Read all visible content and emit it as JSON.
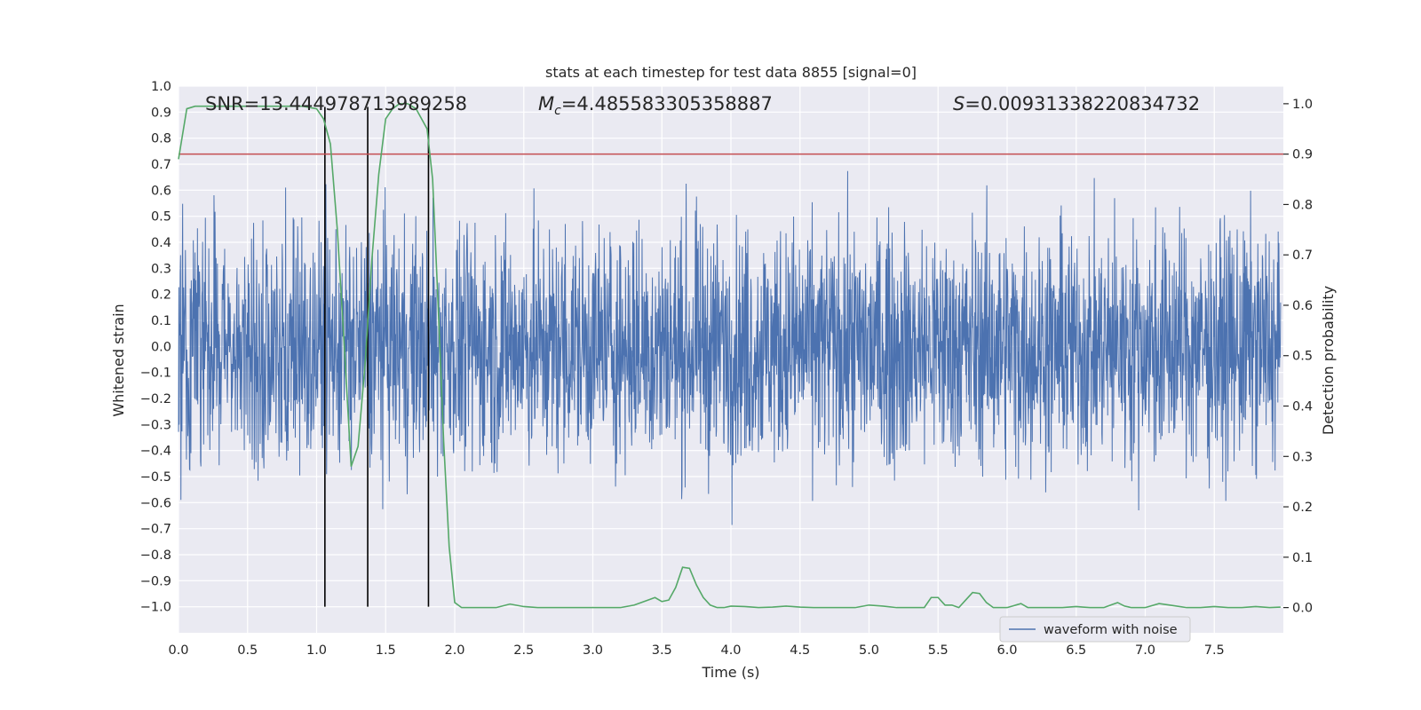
{
  "chart_data": {
    "type": "line",
    "title": "stats at each timestep for test data 8855 [signal=0]",
    "xlabel": "Time (s)",
    "ylabel": "Whitened strain",
    "ylabel_right": "Detection probability",
    "xlim": [
      0.0,
      8.0
    ],
    "ylim": [
      -1.1,
      1.0
    ],
    "ylim_right": [
      -0.05,
      1.035
    ],
    "xticks": [
      0.0,
      0.5,
      1.0,
      1.5,
      2.0,
      2.5,
      3.0,
      3.5,
      4.0,
      4.5,
      5.0,
      5.5,
      6.0,
      6.5,
      7.0,
      7.5
    ],
    "xtick_labels": [
      "0.0",
      "0.5",
      "1.0",
      "1.5",
      "2.0",
      "2.5",
      "3.0",
      "3.5",
      "4.0",
      "4.5",
      "5.0",
      "5.5",
      "6.0",
      "6.5",
      "7.0",
      "7.5"
    ],
    "yticks": [
      1.0,
      0.9,
      0.8,
      0.7,
      0.6,
      0.5,
      0.4,
      0.3,
      0.2,
      0.1,
      0.0,
      -0.1,
      -0.2,
      -0.3,
      -0.4,
      -0.5,
      -0.6,
      -0.7,
      -0.8,
      -0.9,
      -1.0
    ],
    "ytick_labels": [
      "1.0",
      "0.9",
      "0.8",
      "0.7",
      "0.6",
      "0.5",
      "0.4",
      "0.3",
      "0.2",
      "0.1",
      "0.0",
      "−0.1",
      "−0.2",
      "−0.3",
      "−0.4",
      "−0.5",
      "−0.6",
      "−0.7",
      "−0.8",
      "−0.9",
      "−1.0"
    ],
    "yticks_right": [
      1.0,
      0.9,
      0.8,
      0.7,
      0.6,
      0.5,
      0.4,
      0.3,
      0.2,
      0.1,
      0.0
    ],
    "ytick_labels_right": [
      "1.0",
      "0.9",
      "0.8",
      "0.7",
      "0.6",
      "0.5",
      "0.4",
      "0.3",
      "0.2",
      "0.1",
      "0.0"
    ],
    "annotations": {
      "snr": "SNR=13.444978713989258",
      "mc_symbol": "M",
      "mc_sub": "c",
      "mc_value": "=4.485583305358887",
      "s_symbol": "S",
      "s_value": "=0.00931338220834732"
    },
    "legend": {
      "label": "waveform with noise",
      "position": "lower-right"
    },
    "threshold": {
      "value": 0.9,
      "axis": "right",
      "color": "#c44e52"
    },
    "event_lines": {
      "x": [
        1.06,
        1.37,
        1.81
      ],
      "y_range": [
        -1.0,
        0.92
      ],
      "color": "#000000"
    },
    "waveform": {
      "name": "waveform with noise",
      "color": "#4c72b0",
      "typical_amplitude": 0.45,
      "x_range": [
        0.0,
        7.98
      ]
    },
    "detection_probability": {
      "name": "Detection probability",
      "color": "#55a868",
      "x": [
        0.0,
        0.06,
        0.12,
        0.2,
        0.3,
        0.5,
        0.7,
        0.9,
        1.0,
        1.05,
        1.1,
        1.15,
        1.2,
        1.25,
        1.3,
        1.35,
        1.4,
        1.45,
        1.5,
        1.55,
        1.6,
        1.66,
        1.72,
        1.76,
        1.8,
        1.84,
        1.88,
        1.92,
        1.96,
        2.0,
        2.05,
        2.1,
        2.2,
        2.3,
        2.4,
        2.5,
        2.6,
        2.7,
        2.8,
        2.9,
        3.0,
        3.1,
        3.2,
        3.3,
        3.4,
        3.45,
        3.5,
        3.55,
        3.6,
        3.65,
        3.7,
        3.75,
        3.8,
        3.85,
        3.9,
        3.95,
        4.0,
        4.1,
        4.2,
        4.3,
        4.4,
        4.5,
        4.6,
        4.7,
        4.8,
        4.9,
        5.0,
        5.1,
        5.2,
        5.3,
        5.35,
        5.4,
        5.45,
        5.5,
        5.55,
        5.6,
        5.65,
        5.7,
        5.75,
        5.8,
        5.85,
        5.9,
        5.95,
        6.0,
        6.05,
        6.1,
        6.15,
        6.2,
        6.3,
        6.4,
        6.5,
        6.55,
        6.6,
        6.65,
        6.7,
        6.75,
        6.8,
        6.85,
        6.9,
        7.0,
        7.1,
        7.2,
        7.3,
        7.4,
        7.5,
        7.6,
        7.7,
        7.8,
        7.9,
        7.98
      ],
      "y": [
        0.89,
        0.99,
        0.995,
        0.995,
        0.995,
        0.995,
        0.995,
        0.995,
        0.99,
        0.97,
        0.92,
        0.75,
        0.52,
        0.28,
        0.32,
        0.48,
        0.69,
        0.86,
        0.97,
        0.99,
        1.0,
        1.0,
        0.99,
        0.97,
        0.95,
        0.85,
        0.6,
        0.33,
        0.12,
        0.01,
        0.0,
        0.0,
        0.0,
        0.0,
        0.007,
        0.002,
        0.0,
        0.0,
        0.0,
        0.0,
        0.0,
        0.0,
        0.0,
        0.005,
        0.015,
        0.02,
        0.012,
        0.015,
        0.04,
        0.08,
        0.078,
        0.045,
        0.02,
        0.005,
        0.0,
        0.0,
        0.003,
        0.002,
        0.0,
        0.001,
        0.003,
        0.001,
        0.0,
        0.0,
        0.0,
        0.0,
        0.005,
        0.003,
        0.0,
        0.0,
        0.0,
        0.0,
        0.02,
        0.02,
        0.005,
        0.005,
        0.0,
        0.015,
        0.03,
        0.028,
        0.01,
        0.0,
        0.0,
        0.0,
        0.004,
        0.008,
        0.0,
        0.0,
        0.0,
        0.0,
        0.002,
        0.001,
        0.0,
        0.0,
        0.0,
        0.005,
        0.01,
        0.003,
        0.0,
        0.0,
        0.008,
        0.004,
        0.0,
        0.0,
        0.002,
        0.0,
        0.0,
        0.002,
        0.0,
        0.001
      ]
    }
  }
}
